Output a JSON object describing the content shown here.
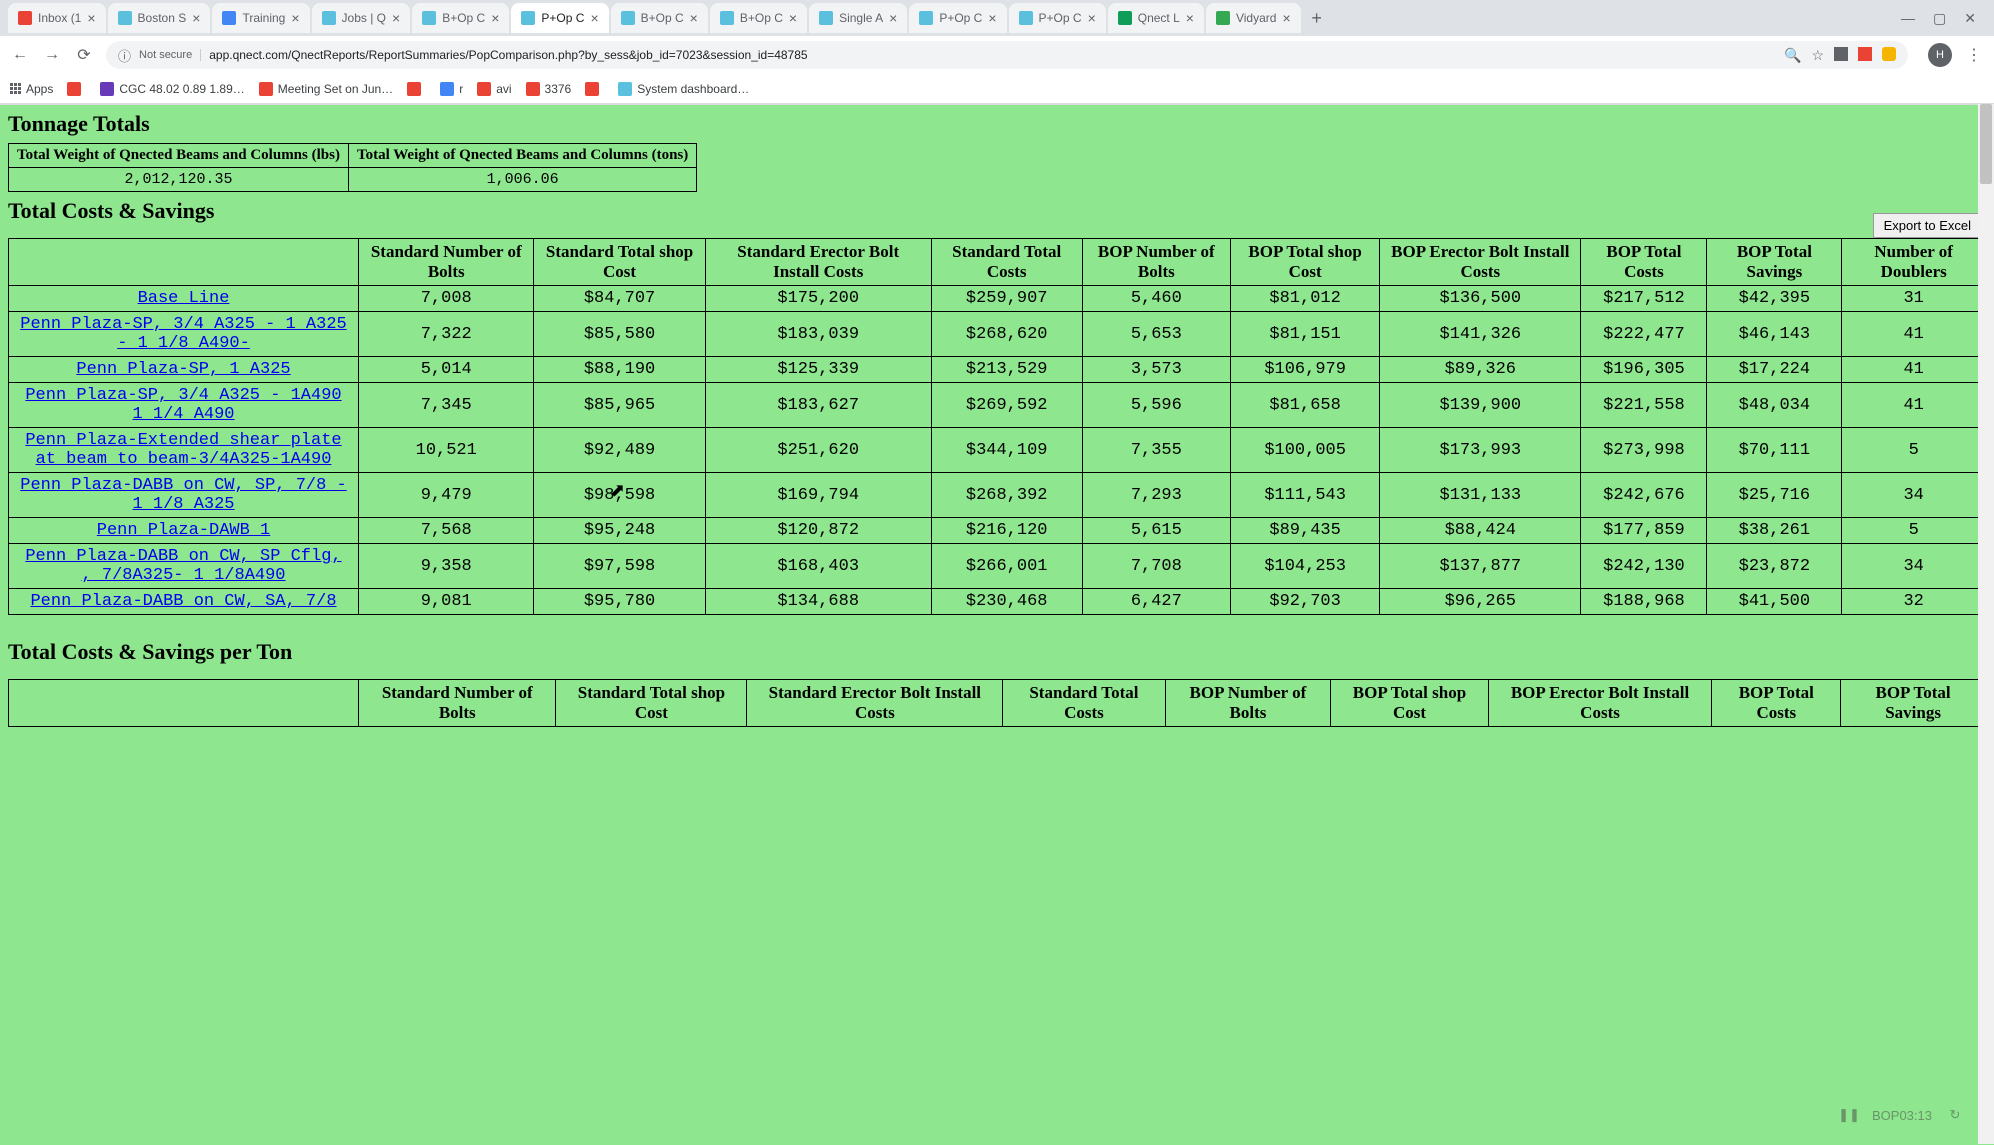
{
  "browser": {
    "tabs": [
      {
        "favicon": "#ea4335",
        "title": "Inbox (1",
        "active": false
      },
      {
        "favicon": "#5bc0de",
        "title": "Boston S",
        "active": false
      },
      {
        "favicon": "#4285f4",
        "title": "Training",
        "active": false
      },
      {
        "favicon": "#5bc0de",
        "title": "Jobs | Q",
        "active": false
      },
      {
        "favicon": "#5bc0de",
        "title": "B+Op C",
        "active": false
      },
      {
        "favicon": "#5bc0de",
        "title": "P+Op C",
        "active": true
      },
      {
        "favicon": "#5bc0de",
        "title": "B+Op C",
        "active": false
      },
      {
        "favicon": "#5bc0de",
        "title": "B+Op C",
        "active": false
      },
      {
        "favicon": "#5bc0de",
        "title": "Single A",
        "active": false
      },
      {
        "favicon": "#5bc0de",
        "title": "P+Op C",
        "active": false
      },
      {
        "favicon": "#5bc0de",
        "title": "P+Op C",
        "active": false
      },
      {
        "favicon": "#0f9d58",
        "title": "Qnect L",
        "active": false
      },
      {
        "favicon": "#34a853",
        "title": "Vidyard",
        "active": false
      }
    ],
    "url_security": "Not secure",
    "url": "app.qnect.com/QnectReports/ReportSummaries/PopComparison.php?by_sess&job_id=7023&session_id=48785",
    "profile": "H",
    "bookmarks": [
      {
        "icon": "#5f6368",
        "label": "Apps"
      },
      {
        "icon": "#ea4335",
        "label": ""
      },
      {
        "icon": "#673ab7",
        "label": "CGC 48.02 0.89 1.89…"
      },
      {
        "icon": "#ea4335",
        "label": "Meeting Set on Jun…"
      },
      {
        "icon": "#ea4335",
        "label": ""
      },
      {
        "icon": "#4285f4",
        "label": "r"
      },
      {
        "icon": "#ea4335",
        "label": "avi"
      },
      {
        "icon": "#ea4335",
        "label": "3376"
      },
      {
        "icon": "#ea4335",
        "label": ""
      },
      {
        "icon": "#5bc0de",
        "label": "System dashboard…"
      }
    ]
  },
  "page": {
    "title_tonnage": "Tonnage Totals",
    "title_costs": "Total Costs & Savings",
    "title_per_ton": "Total Costs & Savings per Ton",
    "export_label": "Export to Excel",
    "tonnage_table": {
      "headers": [
        "Total Weight of Qnected Beams and Columns (lbs)",
        "Total Weight of Qnected Beams and Columns (tons)"
      ],
      "row": [
        "2,012,120.35",
        "1,006.06"
      ]
    },
    "costs_table": {
      "headers": [
        "",
        "Standard Number of Bolts",
        "Standard Total shop Cost",
        "Standard Erector Bolt Install Costs",
        "Standard Total Costs",
        "BOP Number of Bolts",
        "BOP Total shop Cost",
        "BOP Erector Bolt Install Costs",
        "BOP Total Costs",
        "BOP Total Savings",
        "Number of Doublers"
      ],
      "rows": [
        {
          "label": "Base Line",
          "cells": [
            "7,008",
            "$84,707",
            "$175,200",
            "$259,907",
            "5,460",
            "$81,012",
            "$136,500",
            "$217,512",
            "$42,395",
            "31"
          ]
        },
        {
          "label": "Penn Plaza-SP, 3/4 A325 - 1 A325 - 1 1/8 A490-",
          "cells": [
            "7,322",
            "$85,580",
            "$183,039",
            "$268,620",
            "5,653",
            "$81,151",
            "$141,326",
            "$222,477",
            "$46,143",
            "41"
          ]
        },
        {
          "label": "Penn Plaza-SP, 1 A325",
          "cells": [
            "5,014",
            "$88,190",
            "$125,339",
            "$213,529",
            "3,573",
            "$106,979",
            "$89,326",
            "$196,305",
            "$17,224",
            "41"
          ]
        },
        {
          "label": "Penn Plaza-SP, 3/4 A325 - 1A490 1 1/4 A490",
          "cells": [
            "7,345",
            "$85,965",
            "$183,627",
            "$269,592",
            "5,596",
            "$81,658",
            "$139,900",
            "$221,558",
            "$48,034",
            "41"
          ]
        },
        {
          "label": "Penn Plaza-Extended shear plate at beam to beam-3/4A325-1A490",
          "cells": [
            "10,521",
            "$92,489",
            "$251,620",
            "$344,109",
            "7,355",
            "$100,005",
            "$173,993",
            "$273,998",
            "$70,111",
            "5"
          ]
        },
        {
          "label": "Penn Plaza-DABB on CW, SP, 7/8 - 1 1/8 A325",
          "cells": [
            "9,479",
            "$98,598",
            "$169,794",
            "$268,392",
            "7,293",
            "$111,543",
            "$131,133",
            "$242,676",
            "$25,716",
            "34"
          ]
        },
        {
          "label": "Penn Plaza-DAWB 1",
          "cells": [
            "7,568",
            "$95,248",
            "$120,872",
            "$216,120",
            "5,615",
            "$89,435",
            "$88,424",
            "$177,859",
            "$38,261",
            "5"
          ]
        },
        {
          "label": "Penn Plaza-DABB on CW, SP Cflg, , 7/8A325- 1 1/8A490",
          "cells": [
            "9,358",
            "$97,598",
            "$168,403",
            "$266,001",
            "7,708",
            "$104,253",
            "$137,877",
            "$242,130",
            "$23,872",
            "34"
          ]
        },
        {
          "label": "Penn Plaza-DABB on CW, SA, 7/8",
          "cells": [
            "9,081",
            "$95,780",
            "$134,688",
            "$230,468",
            "6,427",
            "$92,703",
            "$96,265",
            "$188,968",
            "$41,500",
            "32"
          ]
        }
      ]
    },
    "per_ton_headers": [
      "",
      "Standard Number of Bolts",
      "Standard Total shop Cost",
      "Standard Erector Bolt Install Costs",
      "Standard Total Costs",
      "BOP Number of Bolts",
      "BOP Total shop Cost",
      "BOP Erector Bolt Install Costs",
      "BOP Total Costs",
      "BOP Total Savings"
    ],
    "video_time": "BOP03:13"
  },
  "colors": {
    "page_bg": "#8ee68e",
    "link": "#0000ee",
    "border": "#000000"
  }
}
